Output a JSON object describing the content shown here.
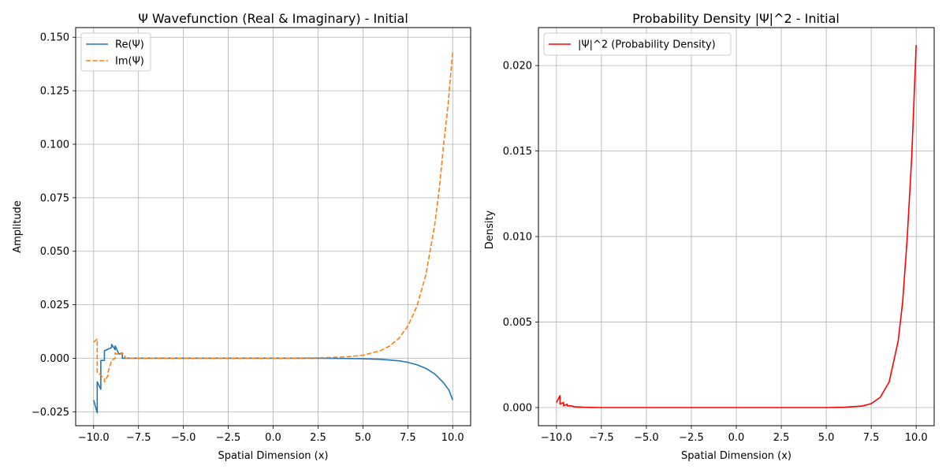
{
  "chart_data": [
    {
      "type": "line",
      "title": "Ψ Wavefunction (Real & Imaginary) - Initial",
      "xlabel": "Spatial Dimension (x)",
      "ylabel": "Amplitude",
      "xlim": [
        -11.0,
        11.0
      ],
      "ylim": [
        -0.0315,
        0.1545
      ],
      "xticks": [
        -10.0,
        -7.5,
        -5.0,
        -2.5,
        0.0,
        2.5,
        5.0,
        7.5,
        10.0
      ],
      "xtick_labels": [
        "−10.0",
        "−7.5",
        "−5.0",
        "−2.5",
        "0.0",
        "2.5",
        "5.0",
        "7.5",
        "10.0"
      ],
      "yticks": [
        -0.025,
        0.0,
        0.025,
        0.05,
        0.075,
        0.1,
        0.125,
        0.15
      ],
      "ytick_labels": [
        "−0.025",
        "0.000",
        "0.025",
        "0.050",
        "0.075",
        "0.100",
        "0.125",
        "0.150"
      ],
      "grid": true,
      "legend": "upper-left",
      "series": [
        {
          "name": "Re(Ψ)",
          "color": "#1f77b4",
          "style": "solid",
          "x": [
            -10.0,
            -9.8,
            -9.8,
            -9.6,
            -9.6,
            -9.4,
            -9.4,
            -9.0,
            -9.0,
            -8.8,
            -8.8,
            -8.6,
            -8.6,
            -8.4,
            -8.4,
            -8.2,
            -7.5,
            -5.0,
            -2.5,
            0.0,
            2.5,
            4.0,
            5.0,
            6.0,
            6.5,
            7.0,
            7.5,
            8.0,
            8.5,
            9.0,
            9.5,
            9.8,
            10.0
          ],
          "y": [
            -0.0195,
            -0.0255,
            -0.011,
            -0.0145,
            -0.001,
            -0.001,
            0.0035,
            0.005,
            0.0065,
            0.004,
            0.0058,
            0.002,
            0.002,
            0.0025,
            0.0,
            0.0,
            0.0,
            0.0,
            0.0,
            0.0,
            0.0,
            -0.0001,
            -0.0002,
            -0.0005,
            -0.0008,
            -0.0012,
            -0.0019,
            -0.003,
            -0.0047,
            -0.0073,
            -0.0115,
            -0.015,
            -0.0195
          ]
        },
        {
          "name": "Im(Ψ)",
          "color": "#ff7f0e",
          "style": "dashed",
          "x": [
            -10.0,
            -9.8,
            -9.8,
            -9.6,
            -9.4,
            -9.4,
            -9.2,
            -9.2,
            -9.0,
            -8.8,
            -8.8,
            -8.6,
            -8.4,
            -8.2,
            -7.5,
            -5.0,
            -2.5,
            0.0,
            2.5,
            4.0,
            5.0,
            6.0,
            6.5,
            7.0,
            7.5,
            8.0,
            8.5,
            9.0,
            9.25,
            9.5,
            9.75,
            10.0
          ],
          "y": [
            0.0075,
            0.009,
            -0.0065,
            -0.008,
            -0.0095,
            -0.011,
            -0.008,
            -0.0065,
            -0.001,
            0.0,
            0.0025,
            0.0015,
            0.0025,
            0.0,
            0.0,
            0.0,
            0.0,
            0.0,
            0.0002,
            0.0006,
            0.0014,
            0.0036,
            0.0058,
            0.0093,
            0.015,
            0.0241,
            0.0388,
            0.0623,
            0.079,
            0.1,
            0.119,
            0.1435
          ]
        }
      ]
    },
    {
      "type": "line",
      "title": "Probability Density |Ψ|^2 - Initial",
      "xlabel": "Spatial Dimension (x)",
      "ylabel": "Density",
      "xlim": [
        -11.0,
        11.0
      ],
      "ylim": [
        -0.00106,
        0.02222
      ],
      "xticks": [
        -10.0,
        -7.5,
        -5.0,
        -2.5,
        0.0,
        2.5,
        5.0,
        7.5,
        10.0
      ],
      "xtick_labels": [
        "−10.0",
        "−7.5",
        "−5.0",
        "−2.5",
        "0.0",
        "2.5",
        "5.0",
        "7.5",
        "10.0"
      ],
      "yticks": [
        0.0,
        0.005,
        0.01,
        0.015,
        0.02
      ],
      "ytick_labels": [
        "0.000",
        "0.005",
        "0.010",
        "0.015",
        "0.020"
      ],
      "grid": true,
      "legend": "upper-left",
      "series": [
        {
          "name": "|Ψ|^2 (Probability Density)",
          "color": "#ff0000",
          "style": "solid",
          "x": [
            -10.0,
            -9.8,
            -9.8,
            -9.6,
            -9.6,
            -9.4,
            -9.4,
            -9.2,
            -9.0,
            -8.5,
            -8.0,
            -7.5,
            -5.0,
            0.0,
            5.0,
            6.0,
            7.0,
            7.5,
            8.0,
            8.5,
            9.0,
            9.25,
            9.5,
            9.75,
            10.0
          ],
          "y": [
            0.0003,
            0.0007,
            0.0002,
            0.0003,
            0.0001,
            0.0002,
            0.0001,
            0.0001,
            5e-05,
            2e-05,
            1e-05,
            0.0,
            0.0,
            0.0,
            0.0,
            2e-05,
            9e-05,
            0.00023,
            0.0006,
            0.0015,
            0.0039,
            0.0062,
            0.0099,
            0.0146,
            0.0212
          ]
        }
      ]
    }
  ]
}
